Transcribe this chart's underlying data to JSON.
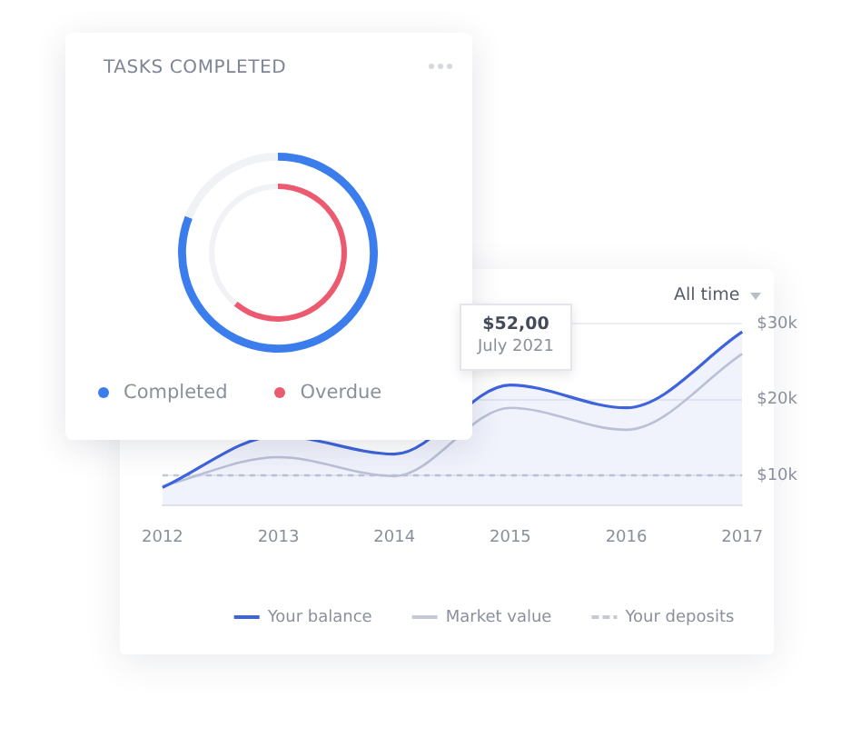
{
  "chart_data": [
    {
      "type": "donut",
      "title": "TASKS COMPLETED",
      "categories": [
        null,
        null
      ],
      "legend": "bottom",
      "series": [
        {
          "name": "Completed",
          "color": "#3b7ded",
          "colors": [
            "#3b7ded",
            "#f1f2f5"
          ],
          "values": [
            81,
            19
          ]
        },
        {
          "name": "Overdue",
          "color": "#ec5a70",
          "colors": [
            "#ec5a70",
            "#f1f2f5"
          ],
          "values": [
            61,
            39
          ]
        }
      ]
    },
    {
      "type": "line",
      "categories": [
        "2012",
        "2013",
        "2014",
        "2015",
        "2016",
        "2017"
      ],
      "ylim": [
        6,
        30
      ],
      "yticks": [
        {
          "value": 10,
          "label": "$10k"
        },
        {
          "value": 20,
          "label": "$20k"
        },
        {
          "value": 30,
          "label": "$30k"
        }
      ],
      "grid": "y",
      "legend": "bottom",
      "marker": "none",
      "series": [
        {
          "name": "Your balance",
          "type": "area",
          "color": "#3d63dd",
          "values": [
            8.4,
            15.2,
            12.8,
            21.9,
            18.9,
            28.9
          ]
        },
        {
          "name": "Market value",
          "color": "#c5c9d6",
          "values": [
            8.6,
            12.4,
            9.9,
            18.9,
            16.0,
            26.0
          ]
        },
        {
          "name": "Your deposits",
          "color": "#c5c9d6",
          "line_style": "dashed",
          "values": [
            10,
            10,
            10,
            10,
            10,
            10
          ]
        }
      ],
      "annotations": [
        "All time",
        "$52,00",
        "July 2021"
      ]
    }
  ]
}
